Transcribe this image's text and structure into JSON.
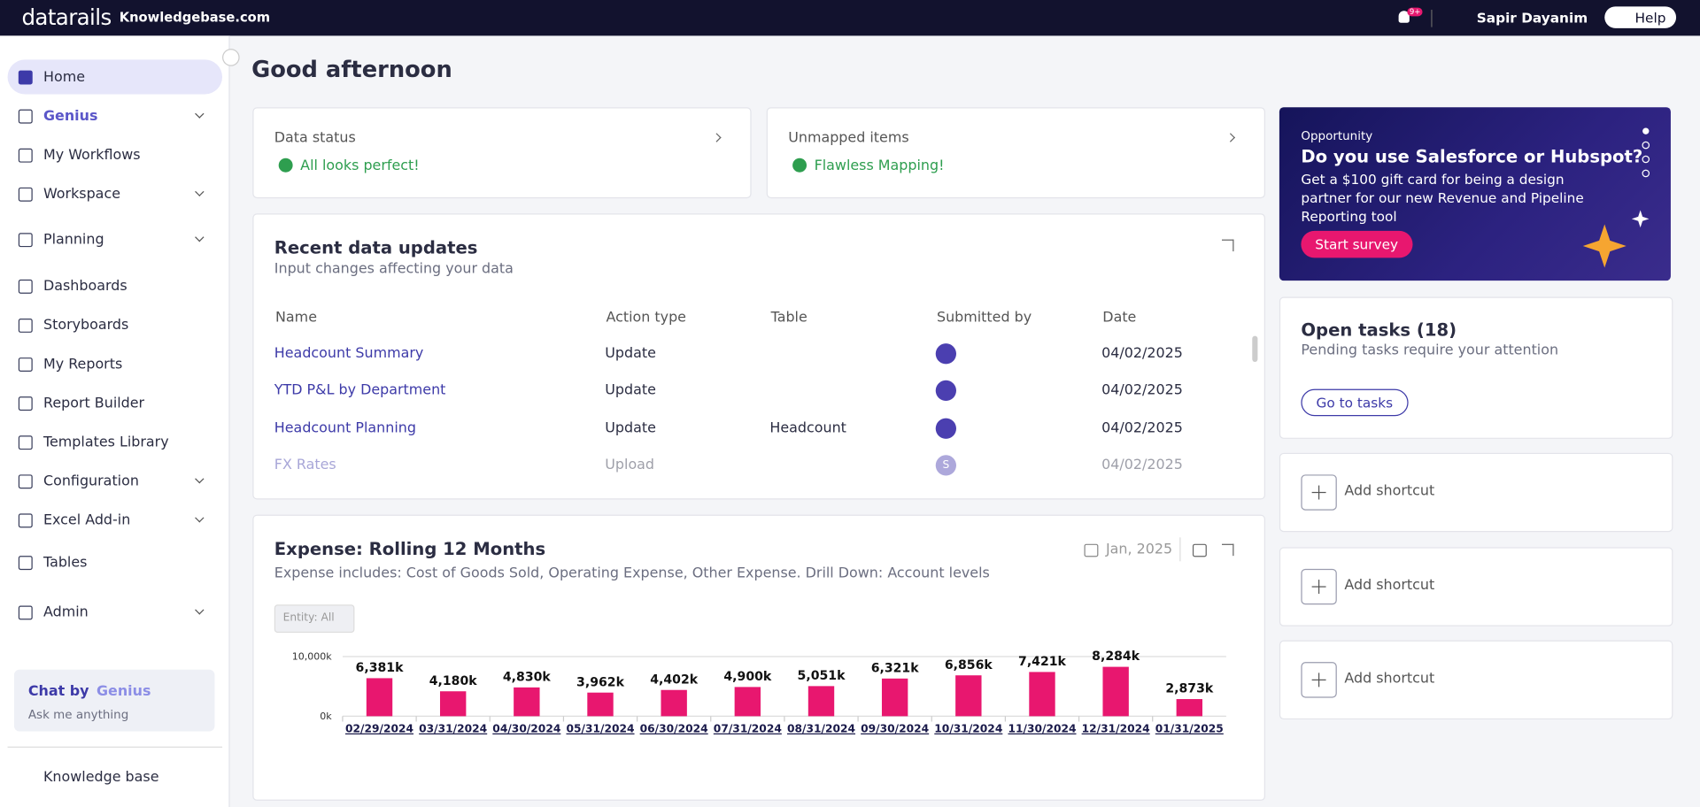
{
  "topbar": {
    "brand": "datarails",
    "workspace": "Knowledgebase.com",
    "notification_badge": "9+",
    "user": "Sapir Dayanim",
    "help": "Help"
  },
  "sidebar": {
    "items": [
      {
        "label": "Home",
        "expandable": false
      },
      {
        "label": "Genius",
        "expandable": true
      },
      {
        "label": "My Workflows",
        "expandable": false
      },
      {
        "label": "Workspace",
        "expandable": true
      },
      {
        "label": "Planning",
        "expandable": true
      },
      {
        "label": "Dashboards",
        "expandable": false
      },
      {
        "label": "Storyboards",
        "expandable": false
      },
      {
        "label": "My Reports",
        "expandable": false
      },
      {
        "label": "Report Builder",
        "expandable": false
      },
      {
        "label": "Templates Library",
        "expandable": false
      },
      {
        "label": "Configuration",
        "expandable": true
      },
      {
        "label": "Excel Add-in",
        "expandable": true
      },
      {
        "label": "Tables",
        "expandable": false
      },
      {
        "label": "Admin",
        "expandable": true
      }
    ],
    "chat": {
      "title": "Chat by",
      "brand": "Genius",
      "subtitle": "Ask me anything"
    },
    "footer": "Knowledge base"
  },
  "greeting": "Good afternoon",
  "status_cards": [
    {
      "title": "Data status",
      "status": "All looks perfect!"
    },
    {
      "title": "Unmapped items",
      "status": "Flawless Mapping!"
    }
  ],
  "recent_updates": {
    "title": "Recent data updates",
    "subtitle": "Input changes affecting your data",
    "columns": [
      "Name",
      "Action type",
      "Table",
      "Submitted by",
      "Date"
    ],
    "rows": [
      {
        "name": "Headcount Summary",
        "action": "Update",
        "date": "04/02/2025"
      },
      {
        "name": "YTD P&L by Department",
        "action": "Update",
        "date": "04/02/2025"
      },
      {
        "name": "Headcount Planning",
        "action": "Update",
        "table": "Headcount",
        "date": "04/02/2025"
      },
      {
        "name": "FX Rates",
        "action": "Upload",
        "avatar": "S",
        "date": "04/02/2025"
      }
    ]
  },
  "chart_data": {
    "type": "bar",
    "title": "Expense: Rolling 12 Months",
    "subtitle": "Expense includes: Cost of Goods Sold, Operating Expense, Other Expense. Drill Down: Account levels",
    "period": "Jan, 2025",
    "filter": "Entity: All",
    "categories": [
      "02/29/2024",
      "03/31/2024",
      "04/30/2024",
      "05/31/2024",
      "06/30/2024",
      "07/31/2024",
      "08/31/2024",
      "09/30/2024",
      "10/31/2024",
      "11/30/2024",
      "12/31/2024",
      "01/31/2025"
    ],
    "values": [
      6381,
      4180,
      4830,
      3962,
      4402,
      4900,
      5051,
      6321,
      6856,
      7421,
      8284,
      2873
    ],
    "value_labels": [
      "6,381k",
      "4,180k",
      "4,830k",
      "3,962k",
      "4,402k",
      "4,900k",
      "5,051k",
      "6,321k",
      "6,856k",
      "7,421k",
      "8,284k",
      "2,873k"
    ],
    "color": "#e8176f",
    "ylim": [
      0,
      10000
    ],
    "yticks": [
      {
        "value": 0,
        "label": "0k"
      },
      {
        "value": 10000,
        "label": "10,000k"
      }
    ],
    "grid": true
  },
  "promo": {
    "eyebrow": "Opportunity",
    "title": "Do you use Salesforce or Hubspot?",
    "body": "Get a $100 gift card for being a design partner for our new Revenue and Pipeline Reporting tool",
    "button": "Start survey"
  },
  "tasks": {
    "title": "Open tasks (18)",
    "subtitle": "Pending tasks require your attention",
    "button": "Go to tasks"
  },
  "shortcuts": [
    "Add shortcut",
    "Add shortcut",
    "Add shortcut"
  ]
}
